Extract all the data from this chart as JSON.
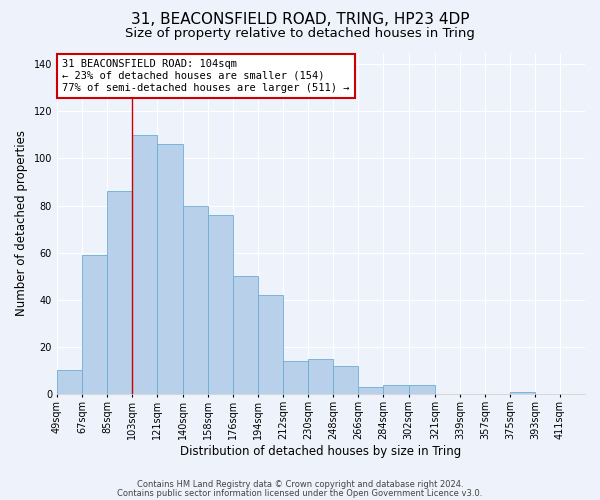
{
  "title_line1": "31, BEACONSFIELD ROAD, TRING, HP23 4DP",
  "title_line2": "Size of property relative to detached houses in Tring",
  "xlabel": "Distribution of detached houses by size in Tring",
  "ylabel": "Number of detached properties",
  "bar_edges": [
    49,
    67,
    85,
    103,
    121,
    140,
    158,
    176,
    194,
    212,
    230,
    248,
    266,
    284,
    302,
    321,
    339,
    357,
    375,
    393,
    411,
    429
  ],
  "bar_heights": [
    10,
    59,
    86,
    110,
    106,
    80,
    76,
    50,
    42,
    14,
    15,
    12,
    3,
    4,
    4,
    0,
    0,
    0,
    1,
    0,
    0
  ],
  "bar_color": "#b8d0ea",
  "bar_edgecolor": "#6baed6",
  "bar_linewidth": 0.6,
  "background_color": "#eef2fa",
  "grid_color": "#ffffff",
  "property_line_x": 103,
  "annotation_line1": "31 BEACONSFIELD ROAD: 104sqm",
  "annotation_line2": "← 23% of detached houses are smaller (154)",
  "annotation_line3": "77% of semi-detached houses are larger (511) →",
  "annotation_box_facecolor": "#ffffff",
  "annotation_box_edgecolor": "#cc0000",
  "ylim": [
    0,
    145
  ],
  "yticks": [
    0,
    20,
    40,
    60,
    80,
    100,
    120,
    140
  ],
  "tick_labels": [
    "49sqm",
    "67sqm",
    "85sqm",
    "103sqm",
    "121sqm",
    "140sqm",
    "158sqm",
    "176sqm",
    "194sqm",
    "212sqm",
    "230sqm",
    "248sqm",
    "266sqm",
    "284sqm",
    "302sqm",
    "321sqm",
    "339sqm",
    "357sqm",
    "375sqm",
    "393sqm",
    "411sqm"
  ],
  "footer_line1": "Contains HM Land Registry data © Crown copyright and database right 2024.",
  "footer_line2": "Contains public sector information licensed under the Open Government Licence v3.0.",
  "title_fontsize": 11,
  "subtitle_fontsize": 9.5,
  "axis_label_fontsize": 8.5,
  "tick_fontsize": 7,
  "annotation_fontsize": 7.5,
  "footer_fontsize": 6
}
